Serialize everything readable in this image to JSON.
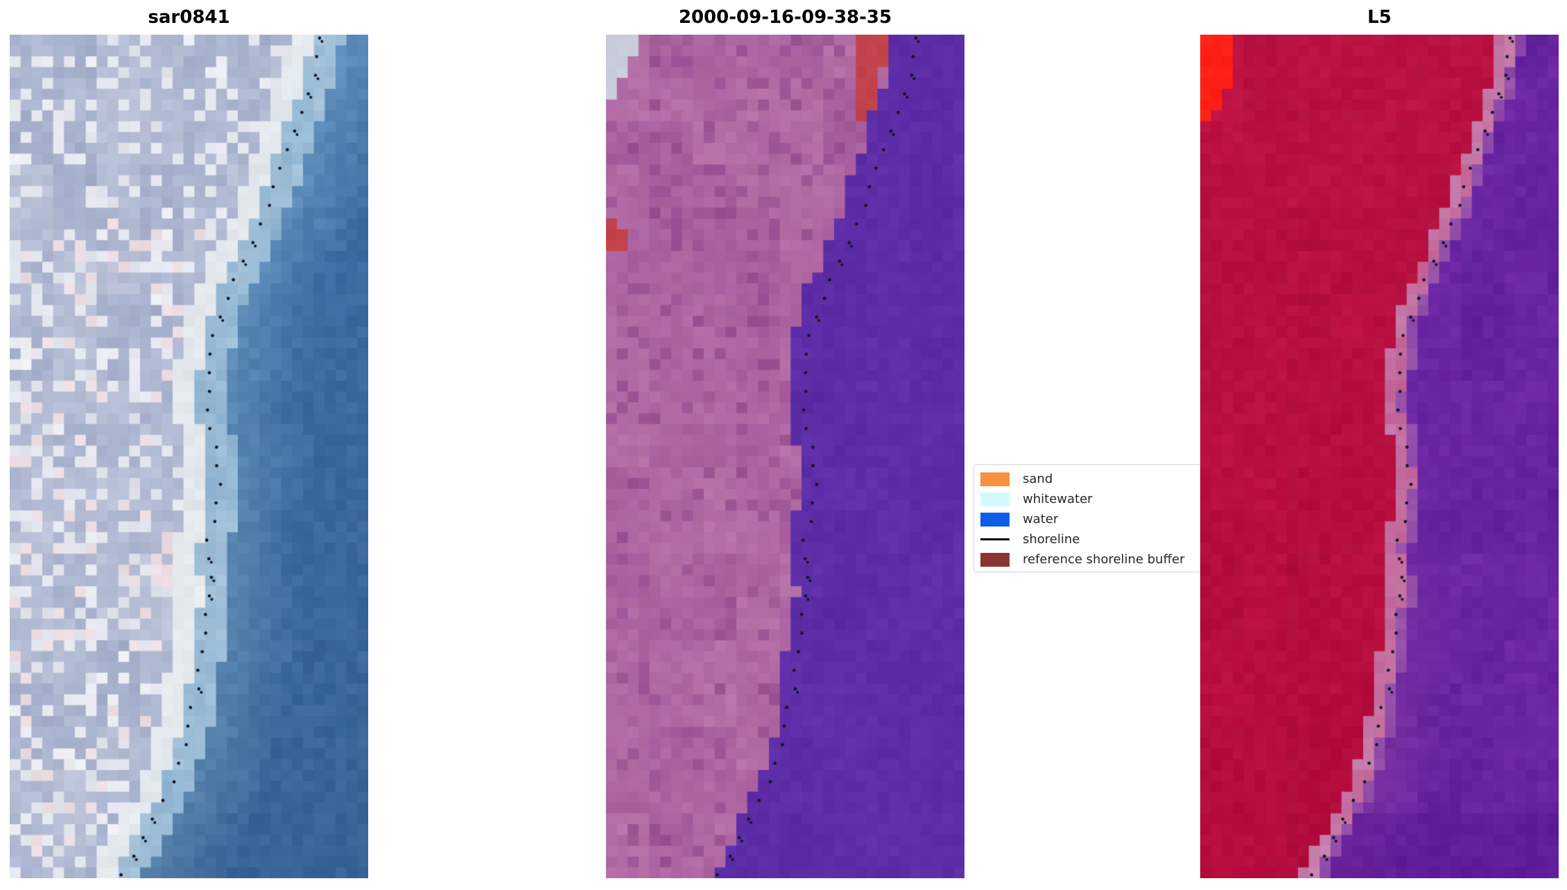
{
  "figure": {
    "background": "#ffffff",
    "panels": [
      {
        "title": "sar0841",
        "type": "sar",
        "palette": {
          "land_a": "#9fa9c8",
          "land_b": "#c2c9dc",
          "land_white": "#edeff4",
          "land_pink": "#ecdde2",
          "shore_white": "#e8edf2",
          "shore_blue": "#a9c6db",
          "water_near": "#6e9dc6",
          "water_far": "#3e6ea7"
        }
      },
      {
        "title": "2000-09-16-09-38-35",
        "type": "class",
        "palette": {
          "corner": "#c9cddc",
          "red": "#c2424b",
          "land_a": "#a2589a",
          "land_b": "#b873a9",
          "land_dark": "#8f478c",
          "water": "#5a2ba4"
        },
        "red_rects": [
          [
            0.705,
            0.781,
            0.0,
            0.108
          ],
          [
            0.0,
            0.034,
            0.212,
            0.228
          ],
          [
            0.0,
            0.068,
            0.228,
            0.262
          ]
        ],
        "red_holes": [
          [
            0.745,
            0.781,
            0.042,
            0.078
          ]
        ]
      },
      {
        "title": "L5",
        "type": "l5",
        "palette": {
          "corner_red": "#fe2016",
          "land_a": "#c01343",
          "land_b": "#b31040",
          "trans_pink": "#c35f95",
          "trans_light": "#c583af",
          "water_a": "#7029a7",
          "water_b": "#611f9a",
          "water_mag": "#93459f",
          "water_dark": "#55128f"
        },
        "corner_rects": [
          [
            0,
            0.106,
            0,
            0.032
          ],
          [
            0,
            0.076,
            0.032,
            0.062
          ],
          [
            0,
            0.051,
            0.062,
            0.086
          ],
          [
            0,
            0.029,
            0.086,
            0.106
          ]
        ]
      }
    ],
    "shoreline": {
      "color": "#111122",
      "dot_count": 46,
      "points": [
        [
          0.0,
          0.87
        ],
        [
          0.03,
          0.858
        ],
        [
          0.06,
          0.842
        ],
        [
          0.085,
          0.818
        ],
        [
          0.105,
          0.8
        ],
        [
          0.135,
          0.778
        ],
        [
          0.165,
          0.752
        ],
        [
          0.195,
          0.728
        ],
        [
          0.225,
          0.698
        ],
        [
          0.255,
          0.665
        ],
        [
          0.285,
          0.632
        ],
        [
          0.315,
          0.6
        ],
        [
          0.345,
          0.578
        ],
        [
          0.375,
          0.563
        ],
        [
          0.405,
          0.556
        ],
        [
          0.435,
          0.548
        ],
        [
          0.465,
          0.558
        ],
        [
          0.495,
          0.576
        ],
        [
          0.52,
          0.585
        ],
        [
          0.55,
          0.58
        ],
        [
          0.58,
          0.565
        ],
        [
          0.61,
          0.552
        ],
        [
          0.64,
          0.557
        ],
        [
          0.665,
          0.562
        ],
        [
          0.69,
          0.549
        ],
        [
          0.72,
          0.54
        ],
        [
          0.75,
          0.531
        ],
        [
          0.78,
          0.52
        ],
        [
          0.81,
          0.506
        ],
        [
          0.84,
          0.49
        ],
        [
          0.87,
          0.469
        ],
        [
          0.9,
          0.445
        ],
        [
          0.925,
          0.408
        ],
        [
          0.95,
          0.376
        ],
        [
          0.975,
          0.342
        ],
        [
          1.0,
          0.312
        ]
      ]
    },
    "legend": {
      "bg": "#ffffff",
      "border": "#d4d4d4",
      "text_color": "#262626",
      "items": [
        {
          "label": "sand",
          "color": "#f6923f",
          "kind": "patch"
        },
        {
          "label": "whitewater",
          "color": "#d2fafd",
          "kind": "patch"
        },
        {
          "label": "water",
          "color": "#0f5ce8",
          "kind": "patch"
        },
        {
          "label": "shoreline",
          "color": "#000000",
          "kind": "line"
        },
        {
          "label": "reference shoreline buffer",
          "color": "#8b3434",
          "kind": "patch"
        }
      ]
    }
  },
  "chart_data": {
    "type": "heatmap",
    "title": "",
    "panels": [
      {
        "title": "sar0841",
        "content": "SAR satellite image: lavender-grey land on left, steel-blue water on right, dotted black shoreline"
      },
      {
        "title": "2000-09-16-09-38-35",
        "content": "classified optical image: mauve land with red reference-shoreline-buffer patches, flat purple water class, stepped class boundary, dotted shoreline"
      },
      {
        "title": "L5",
        "content": "Landsat 5 false-colour image: crimson land, bright red corner patch top-left, pink transition band, purple water, dotted shoreline"
      }
    ],
    "legend_entries": [
      "sand",
      "whitewater",
      "water",
      "shoreline",
      "reference shoreline buffer"
    ],
    "shoreline_points_note": "x-fraction of panel width as function of y-fraction; identical in all three panels; see figure.shoreline.points as [y_frac, x_frac] pairs"
  }
}
